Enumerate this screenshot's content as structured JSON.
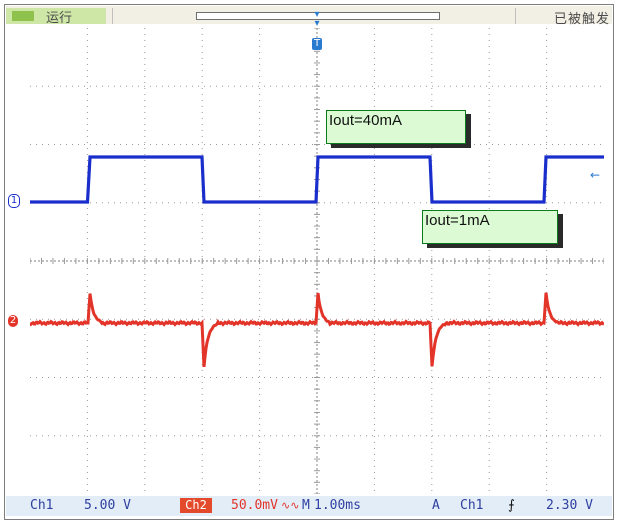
{
  "top_bar": {
    "run_state": "运行",
    "trigger_status": "已被触发"
  },
  "bottom_bar": {
    "ch1_label": "Ch1",
    "ch1_scale": "5.00 V",
    "ch2_label": "Ch2",
    "ch2_scale": "50.0mV",
    "ch2_bw_symbol": "∿∿",
    "time_label": "M",
    "time_scale": "1.00ms",
    "trigger_mode": "A",
    "trigger_source": "Ch1",
    "trigger_slope": "⨍",
    "trigger_level": "2.30 V"
  },
  "annotations": {
    "high": "Iout=40mA",
    "low": "Iout=1mA"
  },
  "markers": {
    "ch1": "1",
    "ch2": "2",
    "trigger_time": "T",
    "trigger_level": "←"
  },
  "colors": {
    "ch1": "#1a2ecc",
    "ch2": "#e3342a",
    "grid": "#9a9a9a",
    "annotation_border": "#0c7a1a",
    "annotation_fill": "#dcfbd4"
  }
}
